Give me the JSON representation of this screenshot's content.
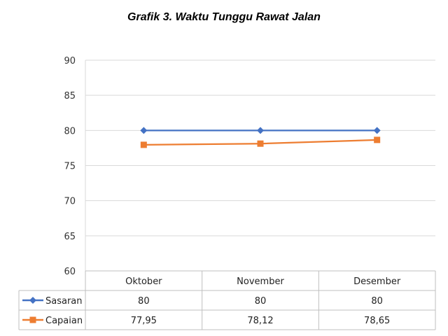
{
  "chart_data": {
    "type": "line",
    "title": "Grafik 3. Waktu Tunggu Rawat Jalan",
    "categories": [
      "Oktober",
      "November",
      "Desember"
    ],
    "series": [
      {
        "name": "Sasaran",
        "values": [
          80,
          80,
          80
        ],
        "labels": [
          "80",
          "80",
          "80"
        ],
        "color": "#4472C4",
        "marker": "diamond"
      },
      {
        "name": "Capaian",
        "values": [
          77.95,
          78.12,
          78.65
        ],
        "labels": [
          "77,95",
          "78,12",
          "78,65"
        ],
        "color": "#ED7D31",
        "marker": "square"
      }
    ],
    "ylim": [
      60,
      90
    ],
    "yticks": [
      90,
      85,
      80,
      75,
      70,
      65,
      60
    ],
    "grid": true,
    "legend": "data-table",
    "xlabel": "",
    "ylabel": ""
  }
}
